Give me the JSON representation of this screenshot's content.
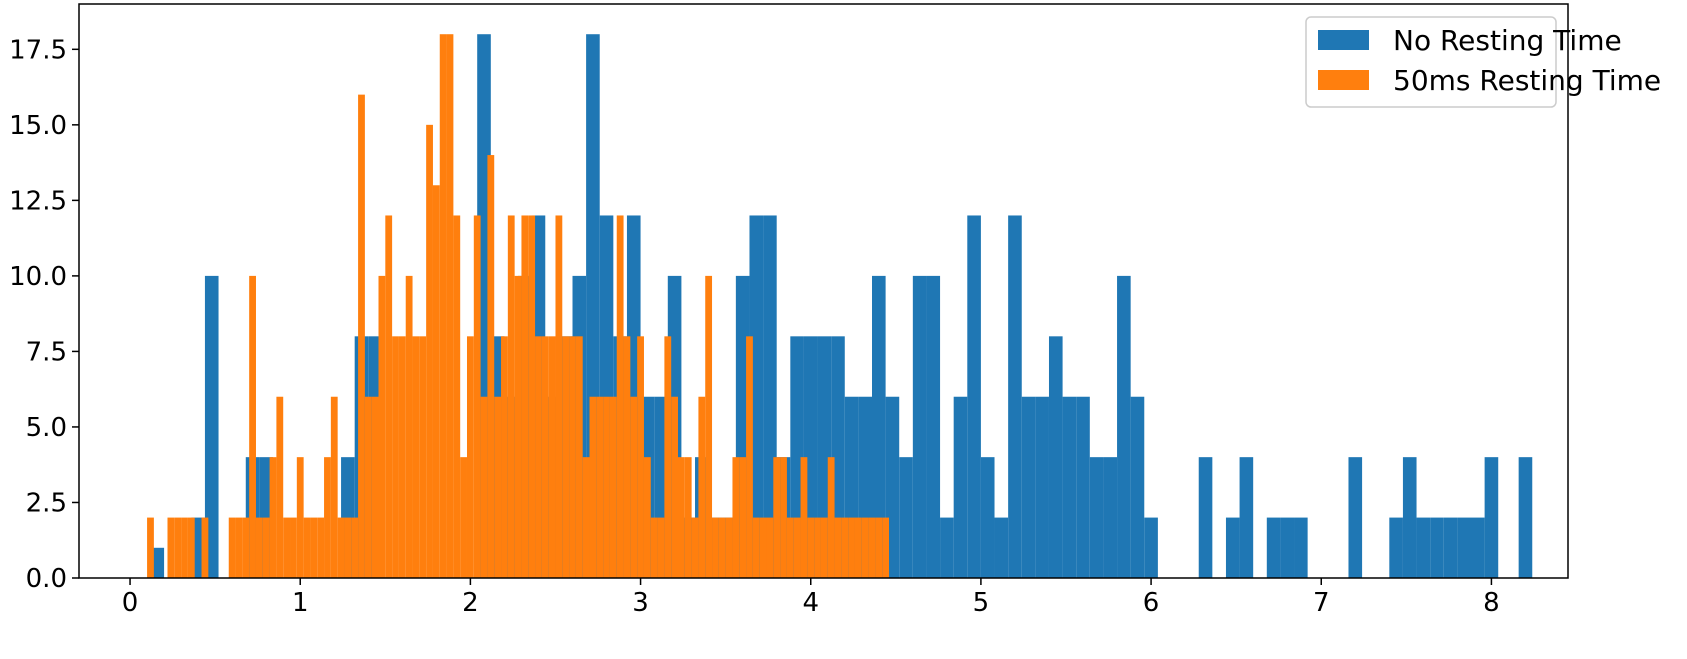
{
  "chart_data": {
    "type": "histogram",
    "title": "",
    "xlabel": "",
    "ylabel": "",
    "xlim": [
      -0.3,
      8.45
    ],
    "ylim": [
      0,
      19
    ],
    "grid": false,
    "legend_position": "top-right",
    "x_ticks": [
      0,
      1,
      2,
      3,
      4,
      5,
      6,
      7,
      8
    ],
    "x_tick_labels": [
      "0",
      "1",
      "2",
      "3",
      "4",
      "5",
      "6",
      "7",
      "8"
    ],
    "y_ticks": [
      0,
      2.5,
      5,
      7.5,
      10,
      12.5,
      15,
      17.5
    ],
    "y_tick_labels": [
      "0.0",
      "2.5",
      "5.0",
      "7.5",
      "10.0",
      "12.5",
      "15.0",
      "17.5"
    ],
    "series": [
      {
        "name": "No Resting Time",
        "color": "#1f77b4",
        "bin_width": 0.08,
        "bins": [
          [
            0.12,
            1
          ],
          [
            0.36,
            2
          ],
          [
            0.44,
            10
          ],
          [
            0.68,
            4
          ],
          [
            0.76,
            4
          ],
          [
            1.24,
            4
          ],
          [
            1.32,
            8
          ],
          [
            1.4,
            8
          ],
          [
            2.04,
            18
          ],
          [
            2.12,
            8
          ],
          [
            2.2,
            6
          ],
          [
            2.28,
            10
          ],
          [
            2.36,
            12
          ],
          [
            2.44,
            6
          ],
          [
            2.52,
            8
          ],
          [
            2.6,
            10
          ],
          [
            2.68,
            18
          ],
          [
            2.76,
            12
          ],
          [
            2.84,
            8
          ],
          [
            2.92,
            12
          ],
          [
            3.0,
            6
          ],
          [
            3.08,
            6
          ],
          [
            3.16,
            10
          ],
          [
            3.24,
            2
          ],
          [
            3.32,
            4
          ],
          [
            3.4,
            2
          ],
          [
            3.48,
            2
          ],
          [
            3.56,
            10
          ],
          [
            3.64,
            12
          ],
          [
            3.72,
            12
          ],
          [
            3.8,
            4
          ],
          [
            3.88,
            8
          ],
          [
            3.96,
            8
          ],
          [
            4.04,
            8
          ],
          [
            4.12,
            8
          ],
          [
            4.2,
            6
          ],
          [
            4.28,
            6
          ],
          [
            4.36,
            10
          ],
          [
            4.44,
            6
          ],
          [
            4.52,
            4
          ],
          [
            4.6,
            10
          ],
          [
            4.68,
            10
          ],
          [
            4.76,
            2
          ],
          [
            4.84,
            6
          ],
          [
            4.92,
            12
          ],
          [
            5.0,
            4
          ],
          [
            5.08,
            2
          ],
          [
            5.16,
            12
          ],
          [
            5.24,
            6
          ],
          [
            5.32,
            6
          ],
          [
            5.4,
            8
          ],
          [
            5.48,
            6
          ],
          [
            5.56,
            6
          ],
          [
            5.64,
            4
          ],
          [
            5.72,
            4
          ],
          [
            5.8,
            10
          ],
          [
            5.88,
            6
          ],
          [
            5.96,
            2
          ],
          [
            6.28,
            4
          ],
          [
            6.44,
            2
          ],
          [
            6.52,
            4
          ],
          [
            6.68,
            2
          ],
          [
            6.76,
            2
          ],
          [
            6.84,
            2
          ],
          [
            7.16,
            4
          ],
          [
            7.4,
            2
          ],
          [
            7.48,
            4
          ],
          [
            7.56,
            2
          ],
          [
            7.64,
            2
          ],
          [
            7.72,
            2
          ],
          [
            7.8,
            2
          ],
          [
            7.88,
            2
          ],
          [
            7.96,
            4
          ],
          [
            8.16,
            4
          ]
        ]
      },
      {
        "name": "50ms Resting Time",
        "color": "#ff7f0e",
        "bin_width": 0.04,
        "bins": [
          [
            0.1,
            2
          ],
          [
            0.22,
            2
          ],
          [
            0.26,
            2
          ],
          [
            0.3,
            2
          ],
          [
            0.34,
            2
          ],
          [
            0.42,
            2
          ],
          [
            0.58,
            2
          ],
          [
            0.62,
            2
          ],
          [
            0.66,
            2
          ],
          [
            0.7,
            10
          ],
          [
            0.74,
            2
          ],
          [
            0.78,
            2
          ],
          [
            0.82,
            4
          ],
          [
            0.86,
            6
          ],
          [
            0.9,
            2
          ],
          [
            0.94,
            2
          ],
          [
            0.98,
            4
          ],
          [
            1.02,
            2
          ],
          [
            1.06,
            2
          ],
          [
            1.1,
            2
          ],
          [
            1.14,
            4
          ],
          [
            1.18,
            6
          ],
          [
            1.22,
            2
          ],
          [
            1.26,
            2
          ],
          [
            1.3,
            2
          ],
          [
            1.34,
            16
          ],
          [
            1.38,
            6
          ],
          [
            1.42,
            6
          ],
          [
            1.46,
            10
          ],
          [
            1.5,
            12
          ],
          [
            1.54,
            8
          ],
          [
            1.58,
            8
          ],
          [
            1.62,
            10
          ],
          [
            1.66,
            8
          ],
          [
            1.7,
            8
          ],
          [
            1.74,
            15
          ],
          [
            1.78,
            13
          ],
          [
            1.82,
            18
          ],
          [
            1.86,
            18
          ],
          [
            1.9,
            12
          ],
          [
            1.94,
            4
          ],
          [
            1.98,
            8
          ],
          [
            2.02,
            12
          ],
          [
            2.06,
            6
          ],
          [
            2.1,
            14
          ],
          [
            2.14,
            6
          ],
          [
            2.18,
            8
          ],
          [
            2.22,
            12
          ],
          [
            2.26,
            10
          ],
          [
            2.3,
            12
          ],
          [
            2.34,
            12
          ],
          [
            2.38,
            8
          ],
          [
            2.42,
            8
          ],
          [
            2.46,
            8
          ],
          [
            2.5,
            12
          ],
          [
            2.54,
            8
          ],
          [
            2.58,
            8
          ],
          [
            2.62,
            8
          ],
          [
            2.66,
            4
          ],
          [
            2.7,
            6
          ],
          [
            2.74,
            6
          ],
          [
            2.78,
            6
          ],
          [
            2.82,
            6
          ],
          [
            2.86,
            12
          ],
          [
            2.9,
            8
          ],
          [
            2.94,
            6
          ],
          [
            2.98,
            8
          ],
          [
            3.02,
            4
          ],
          [
            3.06,
            2
          ],
          [
            3.1,
            2
          ],
          [
            3.14,
            8
          ],
          [
            3.18,
            6
          ],
          [
            3.22,
            4
          ],
          [
            3.26,
            4
          ],
          [
            3.3,
            2
          ],
          [
            3.34,
            6
          ],
          [
            3.38,
            10
          ],
          [
            3.42,
            2
          ],
          [
            3.46,
            2
          ],
          [
            3.5,
            2
          ],
          [
            3.54,
            4
          ],
          [
            3.58,
            4
          ],
          [
            3.62,
            8
          ],
          [
            3.66,
            2
          ],
          [
            3.7,
            2
          ],
          [
            3.74,
            2
          ],
          [
            3.78,
            4
          ],
          [
            3.82,
            4
          ],
          [
            3.86,
            2
          ],
          [
            3.9,
            2
          ],
          [
            3.94,
            4
          ],
          [
            3.98,
            2
          ],
          [
            4.02,
            2
          ],
          [
            4.06,
            2
          ],
          [
            4.1,
            4
          ],
          [
            4.14,
            2
          ],
          [
            4.18,
            2
          ],
          [
            4.22,
            2
          ],
          [
            4.26,
            2
          ],
          [
            4.3,
            2
          ],
          [
            4.34,
            2
          ],
          [
            4.38,
            2
          ],
          [
            4.42,
            2
          ]
        ]
      }
    ]
  }
}
